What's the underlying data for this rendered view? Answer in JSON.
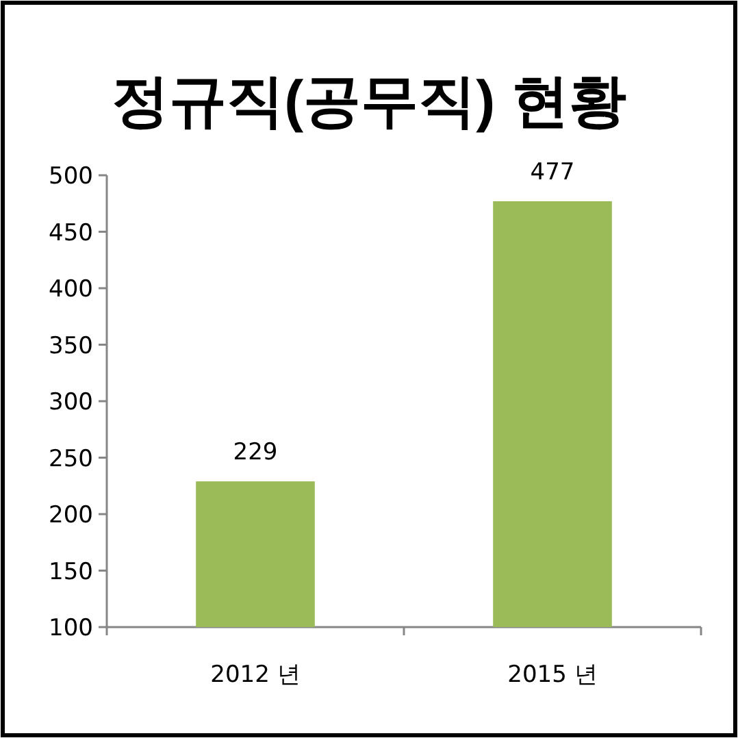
{
  "chart_data": {
    "type": "bar",
    "title": "정규직(공무직) 현황",
    "categories": [
      "2012 년",
      "2015 년"
    ],
    "values": [
      229,
      477
    ],
    "color": "#9bbb59",
    "ylim": [
      100,
      500
    ],
    "yticks": [
      100,
      150,
      200,
      250,
      300,
      350,
      400,
      450,
      500
    ],
    "data_labels": true
  }
}
